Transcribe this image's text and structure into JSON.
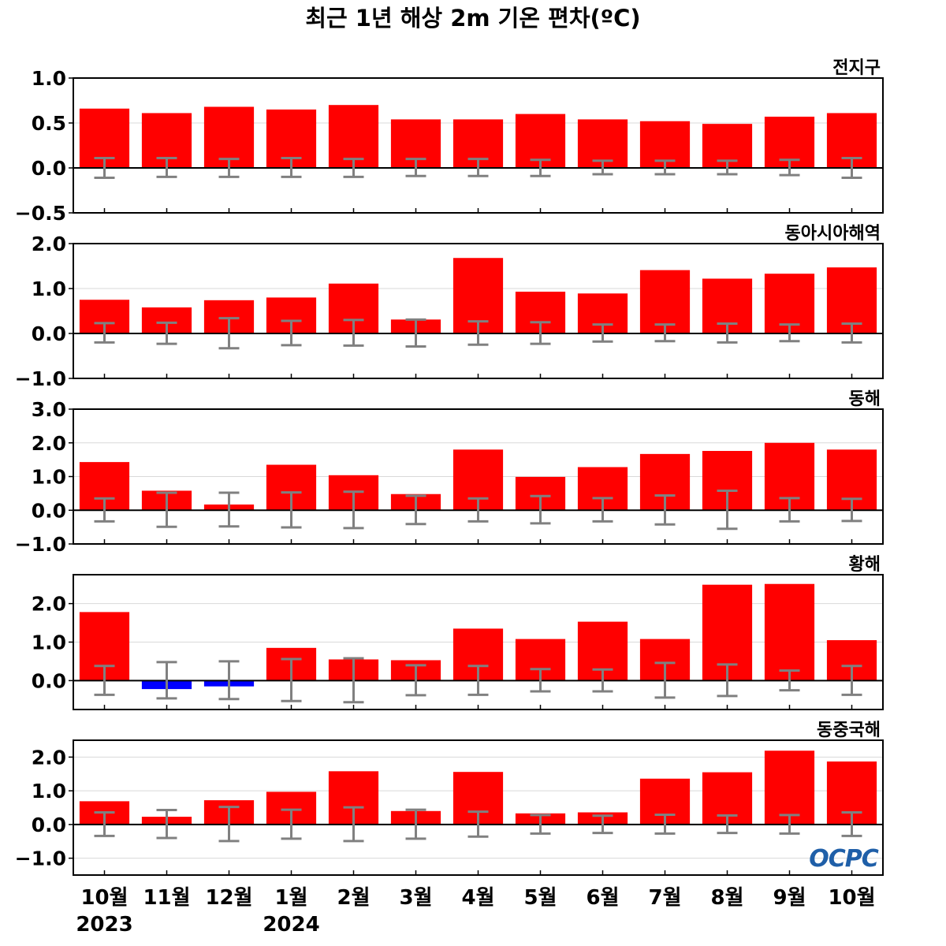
{
  "title": "최근 1년 해상 2m 기온 편차(ºC)",
  "logo_text": "OCPC",
  "colors": {
    "positive": "#ff0000",
    "negative": "#0000ff",
    "errorbar": "#808080",
    "zeroline": "#000000",
    "grid": "#d9d9d9",
    "logo": "#1f5fa8"
  },
  "x_labels": [
    "10월",
    "11월",
    "12월",
    "1월",
    "2월",
    "3월",
    "4월",
    "5월",
    "6월",
    "7월",
    "8월",
    "9월",
    "10월"
  ],
  "year_labels": [
    {
      "index": 0,
      "text": "2023"
    },
    {
      "index": 3,
      "text": "2024"
    }
  ],
  "chart_data": [
    {
      "type": "bar",
      "region": "전지구",
      "ylim": [
        -0.5,
        1.0
      ],
      "yticks": [
        -0.5,
        0.0,
        0.5,
        1.0
      ],
      "ytick_labels": [
        "−0.5",
        "0.0",
        "0.5",
        "1.0"
      ],
      "values": [
        0.66,
        0.61,
        0.68,
        0.65,
        0.7,
        0.54,
        0.54,
        0.6,
        0.54,
        0.52,
        0.49,
        0.57,
        0.61
      ],
      "err_hi": [
        0.11,
        0.11,
        0.1,
        0.11,
        0.1,
        0.1,
        0.1,
        0.09,
        0.08,
        0.08,
        0.08,
        0.09,
        0.11
      ],
      "err_lo": [
        -0.11,
        -0.1,
        -0.1,
        -0.1,
        -0.1,
        -0.09,
        -0.09,
        -0.09,
        -0.07,
        -0.07,
        -0.07,
        -0.08,
        -0.11
      ]
    },
    {
      "type": "bar",
      "region": "동아시아해역",
      "ylim": [
        -1.0,
        2.0
      ],
      "yticks": [
        -1.0,
        0.0,
        1.0,
        2.0
      ],
      "ytick_labels": [
        "−1.0",
        "0.0",
        "1.0",
        "2.0"
      ],
      "values": [
        0.75,
        0.58,
        0.74,
        0.8,
        1.11,
        0.31,
        1.68,
        0.93,
        0.89,
        1.41,
        1.22,
        1.33,
        1.47
      ],
      "err_hi": [
        0.23,
        0.24,
        0.34,
        0.28,
        0.3,
        0.31,
        0.27,
        0.25,
        0.2,
        0.2,
        0.22,
        0.2,
        0.22
      ],
      "err_lo": [
        -0.2,
        -0.23,
        -0.33,
        -0.26,
        -0.27,
        -0.29,
        -0.25,
        -0.23,
        -0.18,
        -0.17,
        -0.2,
        -0.17,
        -0.2
      ]
    },
    {
      "type": "bar",
      "region": "동해",
      "ylim": [
        -1.0,
        3.0
      ],
      "yticks": [
        -1.0,
        0.0,
        1.0,
        2.0,
        3.0
      ],
      "ytick_labels": [
        "−1.0",
        "0.0",
        "1.0",
        "2.0",
        "3.0"
      ],
      "values": [
        1.43,
        0.58,
        0.17,
        1.35,
        1.04,
        0.48,
        1.8,
        0.99,
        1.28,
        1.67,
        1.76,
        2.0,
        1.8
      ],
      "err_hi": [
        0.35,
        0.52,
        0.52,
        0.53,
        0.55,
        0.43,
        0.35,
        0.42,
        0.36,
        0.44,
        0.58,
        0.36,
        0.34
      ],
      "err_lo": [
        -0.33,
        -0.49,
        -0.48,
        -0.51,
        -0.53,
        -0.41,
        -0.33,
        -0.39,
        -0.33,
        -0.42,
        -0.55,
        -0.33,
        -0.32
      ]
    },
    {
      "type": "bar",
      "region": "황해",
      "ylim": [
        -0.75,
        2.75
      ],
      "yticks": [
        0.0,
        1.0,
        2.0
      ],
      "ytick_labels": [
        "0.0",
        "1.0",
        "2.0"
      ],
      "values": [
        1.78,
        -0.22,
        -0.15,
        0.85,
        0.55,
        0.53,
        1.35,
        1.08,
        1.53,
        1.08,
        2.49,
        2.51,
        1.05
      ],
      "err_hi": [
        0.38,
        0.48,
        0.5,
        0.56,
        0.58,
        0.4,
        0.38,
        0.3,
        0.29,
        0.46,
        0.42,
        0.26,
        0.38
      ],
      "err_lo": [
        -0.37,
        -0.46,
        -0.48,
        -0.53,
        -0.56,
        -0.38,
        -0.37,
        -0.28,
        -0.28,
        -0.44,
        -0.4,
        -0.25,
        -0.37
      ]
    },
    {
      "type": "bar",
      "region": "동중국해",
      "ylim": [
        -1.5,
        2.5
      ],
      "yticks": [
        -1.0,
        0.0,
        1.0,
        2.0
      ],
      "ytick_labels": [
        "−1.0",
        "0.0",
        "1.0",
        "2.0"
      ],
      "values": [
        0.69,
        0.23,
        0.72,
        0.97,
        1.58,
        0.4,
        1.56,
        0.33,
        0.36,
        1.36,
        1.55,
        2.19,
        1.87
      ],
      "err_hi": [
        0.36,
        0.43,
        0.52,
        0.44,
        0.51,
        0.44,
        0.38,
        0.28,
        0.26,
        0.29,
        0.27,
        0.28,
        0.36
      ],
      "err_lo": [
        -0.34,
        -0.4,
        -0.49,
        -0.42,
        -0.49,
        -0.42,
        -0.36,
        -0.27,
        -0.25,
        -0.27,
        -0.25,
        -0.27,
        -0.34
      ]
    }
  ]
}
